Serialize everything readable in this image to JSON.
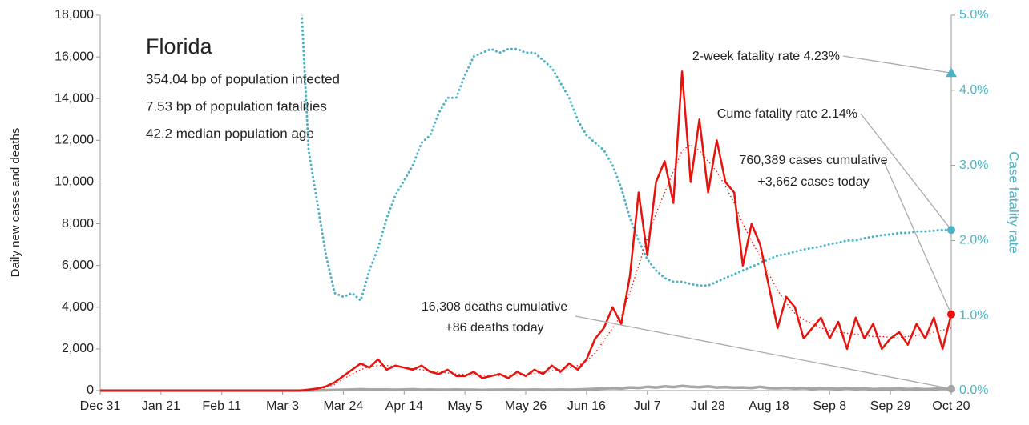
{
  "chart_data": {
    "type": "line",
    "y_label": "Daily new cases and deaths",
    "y2_label": "Case fatality rate",
    "info": {
      "title": "Florida",
      "lines": [
        "354.04 bp of population infected",
        "7.53 bp of population fatalities",
        "42.2 median population age"
      ]
    },
    "categories": [
      "Dec 31",
      null,
      null,
      null,
      null,
      null,
      null,
      "Jan 21",
      null,
      null,
      null,
      null,
      null,
      null,
      "Feb 11",
      null,
      null,
      null,
      null,
      null,
      null,
      "Mar 3",
      null,
      null,
      null,
      null,
      null,
      null,
      "Mar 24",
      null,
      null,
      null,
      null,
      null,
      null,
      "Apr 14",
      null,
      null,
      null,
      null,
      null,
      null,
      "May 5",
      null,
      null,
      null,
      null,
      null,
      null,
      "May 26",
      null,
      null,
      null,
      null,
      null,
      null,
      "Jun 16",
      null,
      null,
      null,
      null,
      null,
      null,
      "Jul 7",
      null,
      null,
      null,
      null,
      null,
      null,
      "Jul 28",
      null,
      null,
      null,
      null,
      null,
      null,
      "Aug 18",
      null,
      null,
      null,
      null,
      null,
      null,
      "Sep 8",
      null,
      null,
      null,
      null,
      null,
      null,
      "Sep 29",
      null,
      null,
      null,
      null,
      null,
      null,
      "Oct 20"
    ],
    "series": [
      {
        "color": "#e8120c",
        "style": "solid",
        "values": [
          0,
          0,
          0,
          0,
          0,
          0,
          0,
          0,
          0,
          0,
          0,
          0,
          0,
          0,
          0,
          0,
          0,
          0,
          0,
          0,
          0,
          0,
          0,
          0,
          50,
          100,
          200,
          400,
          700,
          1000,
          1300,
          1100,
          1500,
          1000,
          1200,
          1100,
          1000,
          1200,
          900,
          800,
          1000,
          700,
          700,
          900,
          600,
          700,
          800,
          600,
          900,
          700,
          1000,
          800,
          1200,
          900,
          1300,
          1000,
          1500,
          2500,
          3000,
          4000,
          3200,
          5500,
          9500,
          6500,
          10000,
          11000,
          9000,
          15300,
          10000,
          13000,
          9500,
          12000,
          10000,
          9500,
          6000,
          8000,
          7000,
          5000,
          3000,
          4500,
          4000,
          2500,
          3000,
          3500,
          2500,
          3300,
          2000,
          3500,
          2500,
          3200,
          2000,
          2500,
          2800,
          2200,
          3200,
          2500,
          3500,
          2000,
          3662
        ]
      },
      {
        "color": "#e8120c",
        "style": "dotted",
        "values": [
          0,
          0,
          0,
          0,
          0,
          0,
          0,
          0,
          0,
          0,
          0,
          0,
          0,
          0,
          0,
          0,
          0,
          0,
          0,
          0,
          0,
          0,
          0,
          0,
          20,
          60,
          150,
          300,
          550,
          800,
          1000,
          1150,
          1200,
          1200,
          1150,
          1100,
          1050,
          1000,
          950,
          900,
          850,
          800,
          780,
          760,
          740,
          720,
          720,
          730,
          750,
          780,
          820,
          880,
          950,
          1000,
          1100,
          1200,
          1400,
          1800,
          2400,
          3000,
          3600,
          4700,
          6000,
          7300,
          8500,
          9500,
          10500,
          11500,
          11800,
          11500,
          11000,
          10500,
          9800,
          9000,
          8000,
          7200,
          6400,
          5600,
          4800,
          4200,
          3700,
          3400,
          3200,
          3000,
          2900,
          2800,
          2750,
          2700,
          2650,
          2600,
          2600,
          2550,
          2550,
          2600,
          2650,
          2700,
          2800,
          2900,
          3000
        ]
      },
      {
        "color": "#a6a6a6",
        "style": "thick",
        "values": [
          0,
          0,
          0,
          0,
          0,
          0,
          0,
          0,
          0,
          0,
          0,
          0,
          0,
          0,
          0,
          0,
          0,
          0,
          0,
          0,
          0,
          0,
          0,
          0,
          0,
          10,
          20,
          30,
          40,
          50,
          60,
          50,
          50,
          50,
          40,
          50,
          60,
          40,
          50,
          40,
          40,
          50,
          40,
          40,
          30,
          40,
          40,
          50,
          40,
          40,
          50,
          40,
          40,
          50,
          40,
          50,
          60,
          80,
          100,
          120,
          100,
          150,
          130,
          180,
          150,
          200,
          170,
          220,
          180,
          160,
          200,
          150,
          170,
          140,
          150,
          130,
          180,
          120,
          110,
          130,
          100,
          120,
          90,
          110,
          100,
          80,
          110,
          90,
          100,
          70,
          90,
          80,
          100,
          70,
          90,
          60,
          80,
          100,
          86
        ]
      },
      {
        "color": "#4bb3c4",
        "style": "dotted-thick",
        "axis": "y2",
        "values": [
          null,
          null,
          null,
          null,
          null,
          null,
          null,
          null,
          null,
          null,
          null,
          null,
          null,
          null,
          null,
          null,
          null,
          null,
          null,
          null,
          null,
          null,
          null,
          5.5,
          3.2,
          2.5,
          1.8,
          1.3,
          1.25,
          1.3,
          1.2,
          1.6,
          1.9,
          2.3,
          2.6,
          2.8,
          3.0,
          3.3,
          3.4,
          3.7,
          3.9,
          3.9,
          4.2,
          4.45,
          4.5,
          4.55,
          4.5,
          4.55,
          4.55,
          4.5,
          4.5,
          4.4,
          4.3,
          4.1,
          3.9,
          3.6,
          3.4,
          3.3,
          3.2,
          3.0,
          2.7,
          2.3,
          2.0,
          1.75,
          1.6,
          1.5,
          1.45,
          1.45,
          1.42,
          1.4,
          1.4,
          1.45,
          1.5,
          1.55,
          1.6,
          1.65,
          1.7,
          1.75,
          1.8,
          1.82,
          1.85,
          1.88,
          1.9,
          1.92,
          1.95,
          1.97,
          2.0,
          2.0,
          2.03,
          2.05,
          2.07,
          2.08,
          2.1,
          2.1,
          2.12,
          2.12,
          2.13,
          2.14,
          2.14
        ]
      }
    ],
    "ylim": [
      0,
      18000
    ],
    "yticks": [
      0,
      {
        "value": 2000,
        "label": "2,000"
      },
      {
        "value": 4000,
        "label": "4,000"
      },
      {
        "value": 6000,
        "label": "6,000"
      },
      {
        "value": 8000,
        "label": "8,000"
      },
      {
        "value": 10000,
        "label": "10,000"
      },
      {
        "value": 12000,
        "label": "12,000"
      },
      {
        "value": 14000,
        "label": "14,000"
      },
      {
        "value": 16000,
        "label": "16,000"
      },
      {
        "value": 18000,
        "label": "18,000"
      }
    ],
    "y2lim": [
      0,
      5
    ],
    "y2ticks": [
      {
        "value": 0,
        "label": "0.0%"
      },
      {
        "value": 1,
        "label": "1.0%"
      },
      {
        "value": 2,
        "label": "2.0%"
      },
      {
        "value": 3,
        "label": "3.0%"
      },
      {
        "value": 4,
        "label": "4.0%"
      },
      {
        "value": 5,
        "label": "5.0%"
      }
    ],
    "annotations": [
      {
        "text": [
          "2-week fatality rate 4.23%"
        ],
        "value": 4.23,
        "axis": "y2",
        "marker": "triangle",
        "color": "#4bb3c4"
      },
      {
        "text": [
          "Cume fatality rate 2.14%"
        ],
        "value": 2.14,
        "axis": "y2",
        "marker": "circle",
        "color": "#4bb3c4"
      },
      {
        "text": [
          "760,389 cases cumulative",
          "+3,662 cases today"
        ],
        "value": 3662,
        "axis": "y",
        "marker": "circle",
        "color": "#e8120c"
      },
      {
        "text": [
          "16,308 deaths cumulative",
          "+86 deaths today"
        ],
        "value": 86,
        "axis": "y",
        "marker": "circle",
        "color": "#a6a6a6"
      }
    ]
  }
}
